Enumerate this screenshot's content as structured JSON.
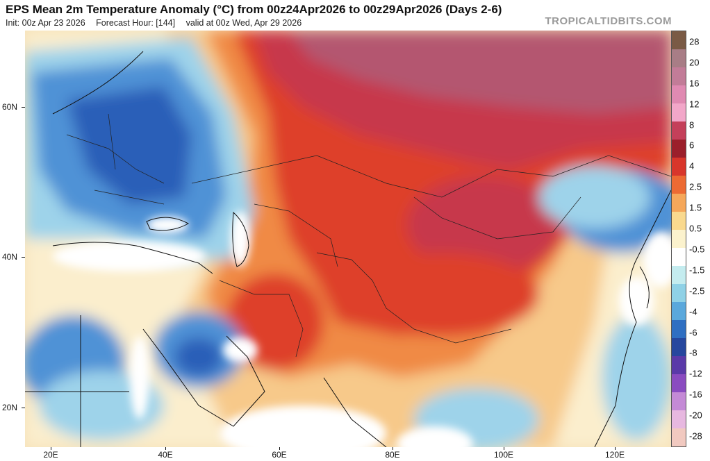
{
  "header": {
    "title": "EPS Mean 2m Temperature Anomaly (°C) from 00z24Apr2026 to 00z29Apr2026 (Days 2-6)",
    "init": "Init: 00z Apr 23 2026",
    "forecast_hour": "Forecast Hour: [144]",
    "valid": "valid at 00z Wed, Apr 29 2026",
    "brand": "TROPICALTIDBITS.COM"
  },
  "axes": {
    "lat_labels": [
      "60N",
      "40N",
      "20N"
    ],
    "lon_labels": [
      "20E",
      "40E",
      "60E",
      "80E",
      "100E",
      "120E"
    ]
  },
  "colorbar": {
    "labels": [
      "28",
      "20",
      "16",
      "12",
      "8",
      "6",
      "4",
      "2.5",
      "1.5",
      "0.5",
      "-0.5",
      "-1.5",
      "-2.5",
      "-4",
      "-6",
      "-8",
      "-12",
      "-16",
      "-20",
      "-28"
    ],
    "colors": [
      "#7a5a45",
      "#a87d86",
      "#c27c98",
      "#e08ab2",
      "#f2a7c9",
      "#c4405a",
      "#9b1f2b",
      "#d8362b",
      "#ec6a33",
      "#f5a75a",
      "#f9d98e",
      "#fbf2cd",
      "#ffffff",
      "#c4ecef",
      "#8fd1e6",
      "#5aa8dc",
      "#2f6fc2",
      "#26479e",
      "#5a3aa8",
      "#8a4cc0",
      "#c48ad6",
      "#e7b8e0",
      "#f1c9c0"
    ]
  },
  "regions": {
    "arctic_warm": "#b4566f",
    "siberia_hot": "#c7384b",
    "warm_red": "#de3f2c",
    "warm_orange": "#f08a45",
    "warm_tan": "#f7c98a",
    "neutral": "#fbeecd",
    "cool_light": "#9ed3ea",
    "cool_mid": "#4f92d6",
    "cool_deep": "#2c5fb8",
    "water": "#ffffff"
  }
}
